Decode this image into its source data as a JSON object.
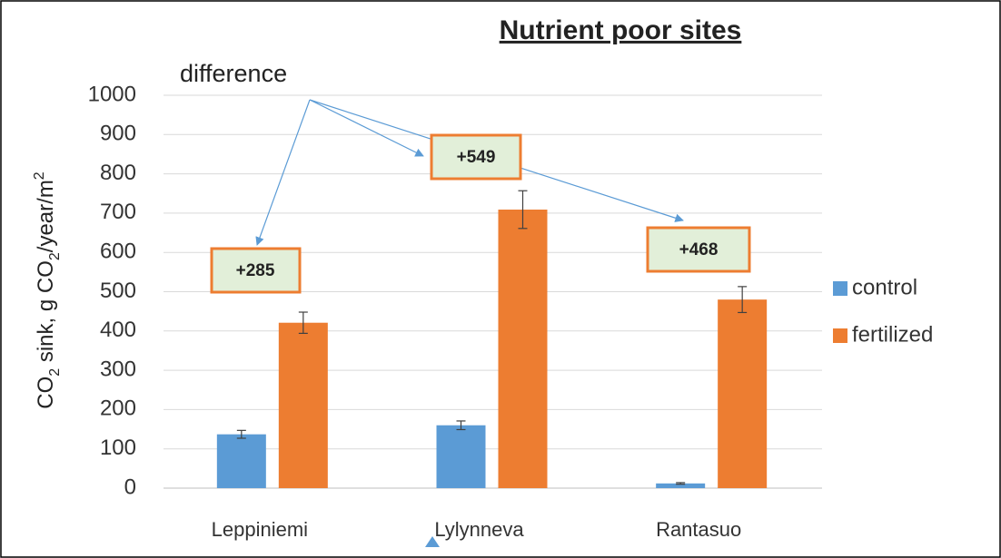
{
  "chart_data": {
    "type": "bar",
    "title": "Nutrient poor sites",
    "ylabel": [
      "CO",
      "2",
      " sink, g CO",
      "2",
      "/year/m",
      "2"
    ],
    "categories": [
      "Leppiniemi",
      "Lylynneva",
      "Rantasuo"
    ],
    "series": [
      {
        "name": "control",
        "color": "#5b9bd5",
        "values": [
          137,
          160,
          12
        ],
        "errors": [
          10,
          11,
          2
        ]
      },
      {
        "name": "fertilized",
        "color": "#ed7d31",
        "values": [
          421,
          709,
          480
        ],
        "errors": [
          27,
          48,
          33
        ]
      }
    ],
    "ylim": [
      0,
      1000
    ],
    "yticks": [
      0,
      100,
      200,
      300,
      400,
      500,
      600,
      700,
      800,
      900,
      1000
    ],
    "grid": true,
    "legend": "right",
    "annotations": [
      "difference",
      "+285",
      "+549",
      "+468"
    ]
  }
}
